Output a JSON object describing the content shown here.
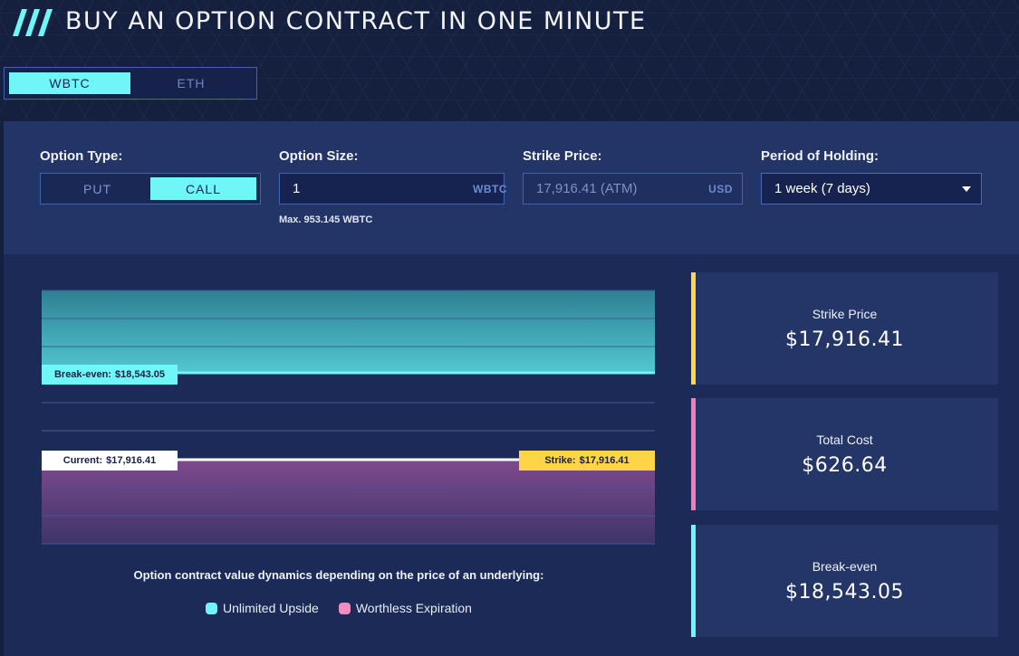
{
  "header": {
    "title": "BUY AN OPTION CONTRACT IN ONE MINUTE",
    "accent": "#6ff6f6"
  },
  "asset_tabs": {
    "items": [
      {
        "label": "WBTC",
        "active": true
      },
      {
        "label": "ETH",
        "active": false
      }
    ]
  },
  "form": {
    "option_type": {
      "label": "Option Type:",
      "options": [
        {
          "label": "PUT",
          "active": false
        },
        {
          "label": "CALL",
          "active": true
        }
      ]
    },
    "option_size": {
      "label": "Option Size:",
      "value": "1",
      "unit": "WBTC",
      "hint": "Max. 953.145 WBTC"
    },
    "strike_price": {
      "label": "Strike Price:",
      "value": "17,916.41 (ATM)",
      "unit": "USD"
    },
    "period": {
      "label": "Period of Holding:",
      "value": "1 week (7 days)",
      "icon": "caret-down-icon"
    }
  },
  "chart": {
    "breakeven_tag": {
      "label": "Break-even:",
      "value": "$18,543.05"
    },
    "current_tag": {
      "label": "Current:",
      "value": "$17,916.41"
    },
    "strike_tag": {
      "label": "Strike:",
      "value": "$17,916.41"
    },
    "caption": "Option contract value dynamics depending on the price of an underlying:",
    "legend": [
      {
        "label": "Unlimited Upside",
        "color": "#6ff6f6"
      },
      {
        "label": "Worthless Expiration",
        "color": "#f28dc0"
      }
    ]
  },
  "cards": [
    {
      "label": "Strike Price",
      "value": "$17,916.41",
      "color": "#ffd447"
    },
    {
      "label": "Total Cost",
      "value": "$626.64",
      "color": "#f47bb5"
    },
    {
      "label": "Break-even",
      "value": "$18,543.05",
      "color": "#6ff6f6"
    }
  ]
}
